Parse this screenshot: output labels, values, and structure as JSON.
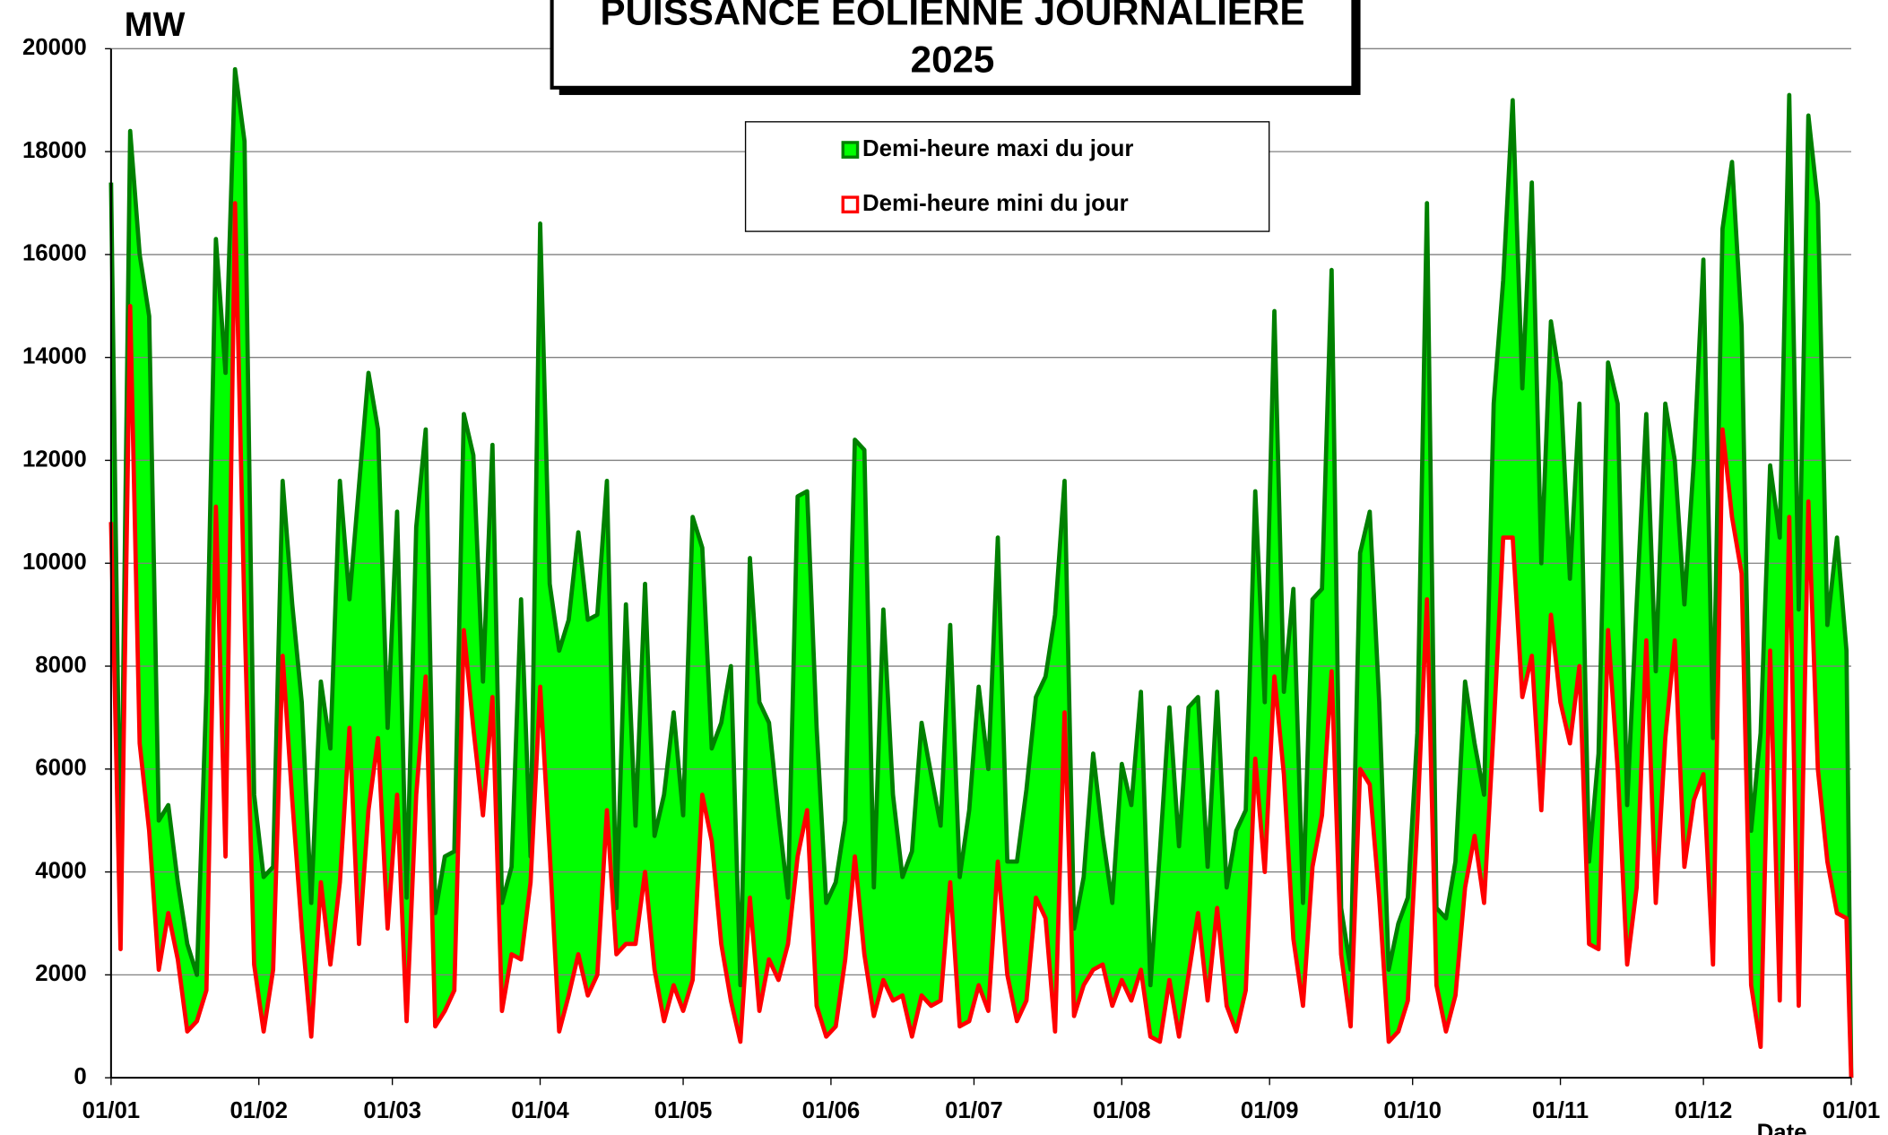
{
  "chart_data": {
    "type": "line",
    "title": "PUISSANCE ÉOLIENNE JOURNALIÈRE",
    "subtitle": "2025",
    "y_label": "MW",
    "x_label": "Date",
    "xlim": [
      0,
      365
    ],
    "xticks": [
      {
        "value": 0,
        "label": "01/01"
      },
      {
        "value": 31,
        "label": "01/02"
      },
      {
        "value": 59,
        "label": "01/03"
      },
      {
        "value": 90,
        "label": "01/04"
      },
      {
        "value": 120,
        "label": "01/05"
      },
      {
        "value": 151,
        "label": "01/06"
      },
      {
        "value": 181,
        "label": "01/07"
      },
      {
        "value": 212,
        "label": "01/08"
      },
      {
        "value": 243,
        "label": "01/09"
      },
      {
        "value": 273,
        "label": "01/10"
      },
      {
        "value": 304,
        "label": "01/11"
      },
      {
        "value": 334,
        "label": "01/12"
      },
      {
        "value": 365,
        "label": "01/01"
      }
    ],
    "ylim": [
      0,
      20000
    ],
    "yticks": [
      0,
      2000,
      4000,
      6000,
      8000,
      10000,
      12000,
      14000,
      16000,
      18000,
      20000
    ],
    "grid": true,
    "legend": "top",
    "x": [
      0,
      2,
      4,
      6,
      8,
      10,
      12,
      14,
      16,
      18,
      20,
      22,
      24,
      26,
      28,
      30,
      32,
      34,
      36,
      38,
      40,
      42,
      44,
      46,
      48,
      50,
      52,
      54,
      56,
      58,
      60,
      62,
      64,
      66,
      68,
      70,
      72,
      74,
      76,
      78,
      80,
      82,
      84,
      86,
      88,
      90,
      92,
      94,
      96,
      98,
      100,
      102,
      104,
      106,
      108,
      110,
      112,
      114,
      116,
      118,
      120,
      122,
      124,
      126,
      128,
      130,
      132,
      134,
      136,
      138,
      140,
      142,
      144,
      146,
      148,
      150,
      152,
      154,
      156,
      158,
      160,
      162,
      164,
      166,
      168,
      170,
      172,
      174,
      176,
      178,
      180,
      182,
      184,
      186,
      188,
      190,
      192,
      194,
      196,
      198,
      200,
      202,
      204,
      206,
      208,
      210,
      212,
      214,
      216,
      218,
      220,
      222,
      224,
      226,
      228,
      230,
      232,
      234,
      236,
      238,
      240,
      242,
      244,
      246,
      248,
      250,
      252,
      254,
      256,
      258,
      260,
      262,
      264,
      266,
      268,
      270,
      272,
      274,
      276,
      278,
      280,
      282,
      284,
      286,
      288,
      290,
      292,
      294,
      296,
      298,
      300,
      302,
      304,
      306,
      308,
      310,
      312,
      314,
      316,
      318,
      320,
      322,
      324,
      326,
      328,
      330,
      332,
      334,
      336,
      338,
      340,
      342,
      344,
      346,
      348,
      350,
      352,
      354,
      356,
      358,
      360,
      362,
      364,
      365
    ],
    "series": [
      {
        "name": "Demi-heure maxi du jour",
        "color": "#008000",
        "fill": "#00ff00",
        "values": [
          17400,
          3700,
          18400,
          16000,
          14800,
          5000,
          5300,
          3800,
          2600,
          2000,
          7500,
          16300,
          13700,
          19600,
          18200,
          5500,
          3900,
          4100,
          11600,
          9200,
          7300,
          3400,
          7700,
          6400,
          11600,
          9300,
          11500,
          13700,
          12600,
          6800,
          11000,
          3500,
          10700,
          12600,
          3200,
          4300,
          4400,
          12900,
          12100,
          7700,
          12300,
          3400,
          4100,
          9300,
          4300,
          16600,
          9600,
          8300,
          8900,
          10600,
          8900,
          9000,
          11600,
          3300,
          9200,
          4900,
          9600,
          4700,
          5500,
          7100,
          5100,
          10900,
          10300,
          6400,
          6900,
          8000,
          1800,
          10100,
          7300,
          6900,
          5100,
          3500,
          11300,
          11400,
          6800,
          3400,
          3800,
          5000,
          12400,
          12200,
          3700,
          9100,
          5500,
          3900,
          4400,
          6900,
          5900,
          4900,
          8800,
          3900,
          5200,
          7600,
          6000,
          10500,
          4200,
          4200,
          5600,
          7400,
          7800,
          9000,
          11600,
          2900,
          3900,
          6300,
          4700,
          3400,
          6100,
          5300,
          7500,
          1800,
          4400,
          7200,
          4500,
          7200,
          7400,
          4100,
          7500,
          3700,
          4800,
          5200,
          11400,
          7300,
          14900,
          7500,
          9500,
          3400,
          9300,
          9500,
          15700,
          3300,
          2100,
          10200,
          11000,
          7300,
          2100,
          3000,
          3500,
          6700,
          17000,
          3300,
          3100,
          4200,
          7700,
          6500,
          5500,
          13100,
          15500,
          19000,
          13400,
          17400,
          10000,
          14700,
          13500,
          9700,
          13100,
          4200,
          6300,
          13900,
          13100,
          5300,
          9200,
          12900,
          7900,
          13100,
          12000,
          9200,
          12000,
          15900,
          6600,
          16500,
          17800,
          14600,
          4800,
          6700,
          11900,
          10500,
          19100,
          9100,
          18700,
          17000,
          8800,
          10500,
          8300,
          0
        ]
      },
      {
        "name": "Demi-heure mini du jour",
        "color": "#ff0000",
        "fill": "#ffffff",
        "values": [
          10800,
          2500,
          15000,
          6500,
          4800,
          2100,
          3200,
          2300,
          900,
          1100,
          1700,
          11100,
          4300,
          17000,
          9000,
          2200,
          900,
          2100,
          8200,
          5400,
          2900,
          800,
          3800,
          2200,
          3800,
          6800,
          2600,
          5200,
          6600,
          2900,
          5500,
          1100,
          5500,
          7800,
          1000,
          1300,
          1700,
          8700,
          6800,
          5100,
          7400,
          1300,
          2400,
          2300,
          3800,
          7600,
          4400,
          900,
          1600,
          2400,
          1600,
          2000,
          5200,
          2400,
          2600,
          2600,
          4000,
          2100,
          1100,
          1800,
          1300,
          1900,
          5500,
          4600,
          2600,
          1500,
          700,
          3500,
          1300,
          2300,
          1900,
          2600,
          4300,
          5200,
          1400,
          800,
          1000,
          2300,
          4300,
          2400,
          1200,
          1900,
          1500,
          1600,
          800,
          1600,
          1400,
          1500,
          3800,
          1000,
          1100,
          1800,
          1300,
          4200,
          2000,
          1100,
          1500,
          3500,
          3100,
          900,
          7100,
          1200,
          1800,
          2100,
          2200,
          1400,
          1900,
          1500,
          2100,
          800,
          700,
          1900,
          800,
          2000,
          3200,
          1500,
          3300,
          1400,
          900,
          1700,
          6200,
          4000,
          7800,
          5900,
          2700,
          1400,
          4100,
          5100,
          7900,
          2400,
          1000,
          6000,
          5700,
          3500,
          700,
          900,
          1500,
          5000,
          9300,
          1800,
          900,
          1600,
          3700,
          4700,
          3400,
          6800,
          10500,
          10500,
          7400,
          8200,
          5200,
          9000,
          7300,
          6500,
          8000,
          2600,
          2500,
          8700,
          6000,
          2200,
          3700,
          8500,
          3400,
          6600,
          8500,
          4100,
          5400,
          5900,
          2200,
          12600,
          10900,
          9800,
          1800,
          600,
          8300,
          1500,
          10900,
          1400,
          11200,
          6000,
          4200,
          3200,
          3100,
          0
        ]
      }
    ]
  }
}
